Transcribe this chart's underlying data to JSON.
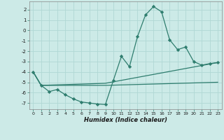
{
  "line1": {
    "x": [
      0,
      1,
      2,
      3,
      4,
      5,
      6,
      7,
      8,
      9,
      10,
      11,
      12,
      13,
      14,
      15,
      16,
      17,
      18,
      19,
      20,
      21,
      22,
      23
    ],
    "y": [
      -4.0,
      -5.3,
      -5.9,
      -5.7,
      -6.2,
      -6.6,
      -6.9,
      -7.0,
      -7.1,
      -7.15,
      -4.8,
      -2.5,
      -3.5,
      -0.6,
      1.5,
      2.3,
      1.8,
      -0.9,
      -1.85,
      -1.6,
      -3.0,
      -3.35,
      -3.2,
      -3.1
    ],
    "marker": "D",
    "markersize": 2.2,
    "color": "#2e7d6e",
    "linewidth": 0.9
  },
  "line2": {
    "x": [
      0,
      1,
      9,
      23
    ],
    "y": [
      -4.0,
      -5.3,
      -5.1,
      -3.1
    ],
    "color": "#2e7d6e",
    "linewidth": 0.9
  },
  "line3": {
    "x": [
      0,
      1,
      9,
      23
    ],
    "y": [
      -4.0,
      -5.3,
      -5.3,
      -5.0
    ],
    "color": "#2e7d6e",
    "linewidth": 0.9
  },
  "xlabel": "Humidex (Indice chaleur)",
  "xlim": [
    -0.5,
    23.5
  ],
  "ylim": [
    -7.6,
    2.8
  ],
  "yticks": [
    2,
    1,
    0,
    -1,
    -2,
    -3,
    -4,
    -5,
    -6,
    -7
  ],
  "xticks": [
    0,
    1,
    2,
    3,
    4,
    5,
    6,
    7,
    8,
    9,
    10,
    11,
    12,
    13,
    14,
    15,
    16,
    17,
    18,
    19,
    20,
    21,
    22,
    23
  ],
  "bg_color": "#cceae7",
  "grid_color": "#b0d8d4",
  "line_color": "#2e7d6e"
}
